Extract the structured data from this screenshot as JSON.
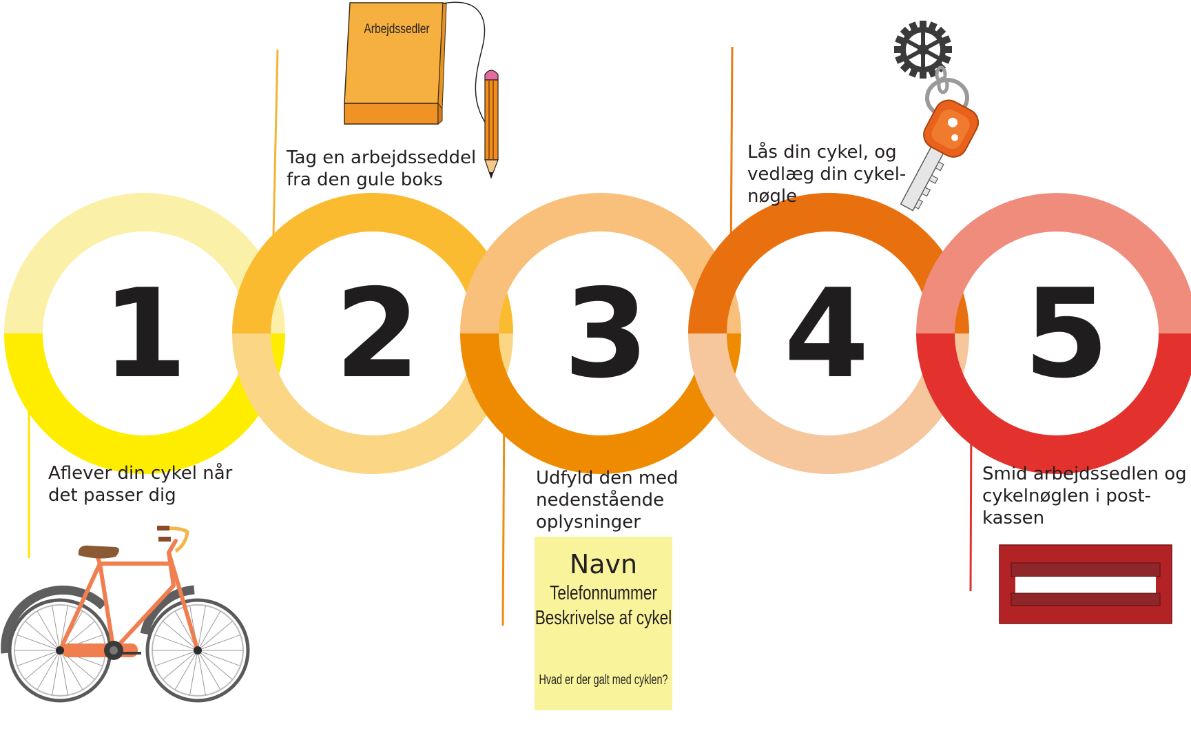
{
  "colors": {
    "circle1": {
      "top": "#fbf0a8",
      "bottom": "#ffed00"
    },
    "circle2": {
      "top": "#fbbb30",
      "bottom": "#fbd684"
    },
    "circle3": {
      "top": "#f8c07a",
      "bottom": "#ef8b00"
    },
    "circle4": {
      "top": "#e8700e",
      "bottom": "#f6c69c"
    },
    "circle5": {
      "top": "#ef8c7c",
      "bottom": "#e3312d"
    },
    "line1": "#ffe600",
    "line2": "#f5b336",
    "line3": "#ee8d10",
    "line4": "#ea7a14",
    "line5": "#e3312d",
    "number_text": "#1f1d1e",
    "body_text": "#231f20",
    "note_bg": "#f9f39c",
    "mailbox": "#b32326"
  },
  "steps": [
    {
      "number": "1",
      "lines": [
        "Aflever din cykel når",
        "det passer dig"
      ]
    },
    {
      "number": "2",
      "lines": [
        "Tag en arbejdsseddel",
        "fra den gule boks"
      ]
    },
    {
      "number": "3",
      "lines": [
        "Udfyld den med",
        "nedenstående",
        "oplysninger"
      ]
    },
    {
      "number": "4",
      "lines": [
        "Lås din cykel, og",
        "vedlæg din cykel-",
        "nøgle"
      ]
    },
    {
      "number": "5",
      "lines": [
        "Smid arbejdssedlen og",
        "cykelnøglen i post-",
        "kassen"
      ]
    }
  ],
  "notepad": {
    "label": "Arbejdssedler"
  },
  "form_note": {
    "title": "Navn",
    "line1": "Telefonnummer",
    "line2": "Beskrivelse af cykel",
    "question": "Hvad er der galt med cyklen?"
  },
  "icons": {
    "bicycle": "bicycle-icon",
    "notepad": "notepad-icon",
    "pencil": "pencil-icon",
    "key": "key-icon",
    "gear": "gear-icon",
    "mailbox": "mailbox-icon"
  }
}
